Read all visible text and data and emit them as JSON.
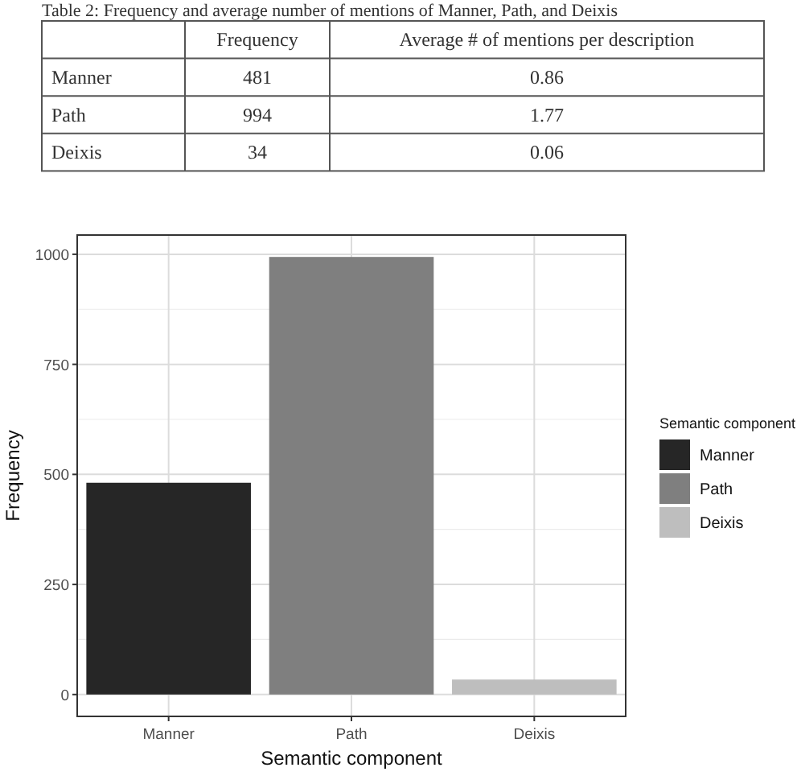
{
  "chart_data": [
    {
      "type": "other",
      "title": "Table 2: Frequency and average number of mentions of Manner, Path, and Deixis",
      "categories": [
        "Manner",
        "Path",
        "Deixis"
      ],
      "series": [
        {
          "name": "Frequency",
          "values": [
            481,
            994,
            34
          ]
        },
        {
          "name": "Average # of mentions per description",
          "values": [
            0.86,
            1.77,
            0.06
          ]
        }
      ],
      "data_labels": true
    },
    {
      "type": "bar",
      "categories": [
        "Manner",
        "Path",
        "Deixis"
      ],
      "series": [
        {
          "name": "Manner",
          "color": "#262626",
          "values": [
            481,
            null,
            null
          ]
        },
        {
          "name": "Path",
          "color": "#7f7f7f",
          "values": [
            null,
            994,
            null
          ]
        },
        {
          "name": "Deixis",
          "color": "#bebebe",
          "values": [
            null,
            null,
            34
          ]
        }
      ],
      "xlabel": "Semantic component",
      "ylabel": "Frequency",
      "legend_title": "Semantic component",
      "legend": "right",
      "ylim": [
        -49.7,
        1043.7
      ],
      "yticks": [
        0,
        250,
        500,
        750,
        1000
      ],
      "grid": true
    }
  ]
}
